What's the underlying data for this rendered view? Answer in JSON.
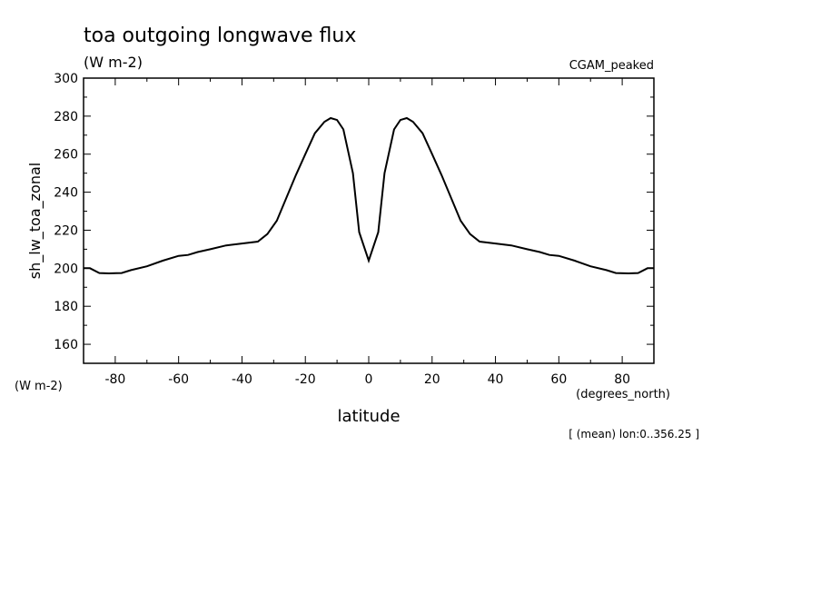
{
  "chart_data": {
    "type": "line",
    "title": "toa outgoing longwave flux",
    "subtitle": "(W m-2)",
    "dataset_label": "CGAM_peaked",
    "ylabel": "sh_lw_toa_zonal",
    "yunits": "(W m-2)",
    "xlabel": "latitude",
    "xunits": "(degrees_north)",
    "footnote": "[ (mean) lon:0..356.25 ]",
    "xlim": [
      -90,
      90
    ],
    "ylim": [
      150,
      300
    ],
    "xticks": [
      -80,
      -60,
      -40,
      -20,
      0,
      20,
      40,
      60,
      80
    ],
    "xtick_labels": [
      "-80",
      "-60",
      "-40",
      "-20",
      "0",
      "20",
      "40",
      "60",
      "80"
    ],
    "yticks": [
      160,
      180,
      200,
      220,
      240,
      260,
      280,
      300
    ],
    "ytick_labels": [
      "160",
      "180",
      "200",
      "220",
      "240",
      "260",
      "280",
      "300"
    ],
    "grid": false,
    "series": [
      {
        "x": [
          -90,
          -88,
          -85,
          -82,
          -78,
          -75,
          -70,
          -65,
          -60,
          -57,
          -54,
          -50,
          -45,
          -40,
          -35,
          -32,
          -29,
          -26,
          -23,
          -20,
          -17,
          -14,
          -12,
          -10,
          -8,
          -5,
          -3,
          0,
          3,
          5,
          8,
          10,
          12,
          14,
          17,
          20,
          23,
          26,
          29,
          32,
          35,
          40,
          45,
          50,
          54,
          57,
          60,
          65,
          70,
          75,
          78,
          82,
          85,
          88,
          90
        ],
        "values": [
          200,
          200,
          197.5,
          197.3,
          197.5,
          199,
          201,
          204,
          206.5,
          207,
          208.5,
          210,
          212,
          213,
          214,
          218,
          225,
          237,
          249,
          260,
          271,
          277,
          279,
          278,
          273,
          250,
          219,
          204,
          219,
          250,
          273,
          278,
          279,
          277,
          271,
          260,
          249,
          237,
          225,
          218,
          214,
          213,
          212,
          210,
          208.5,
          207,
          206.5,
          204,
          201,
          199,
          197.5,
          197.3,
          197.5,
          200,
          200
        ]
      }
    ]
  }
}
